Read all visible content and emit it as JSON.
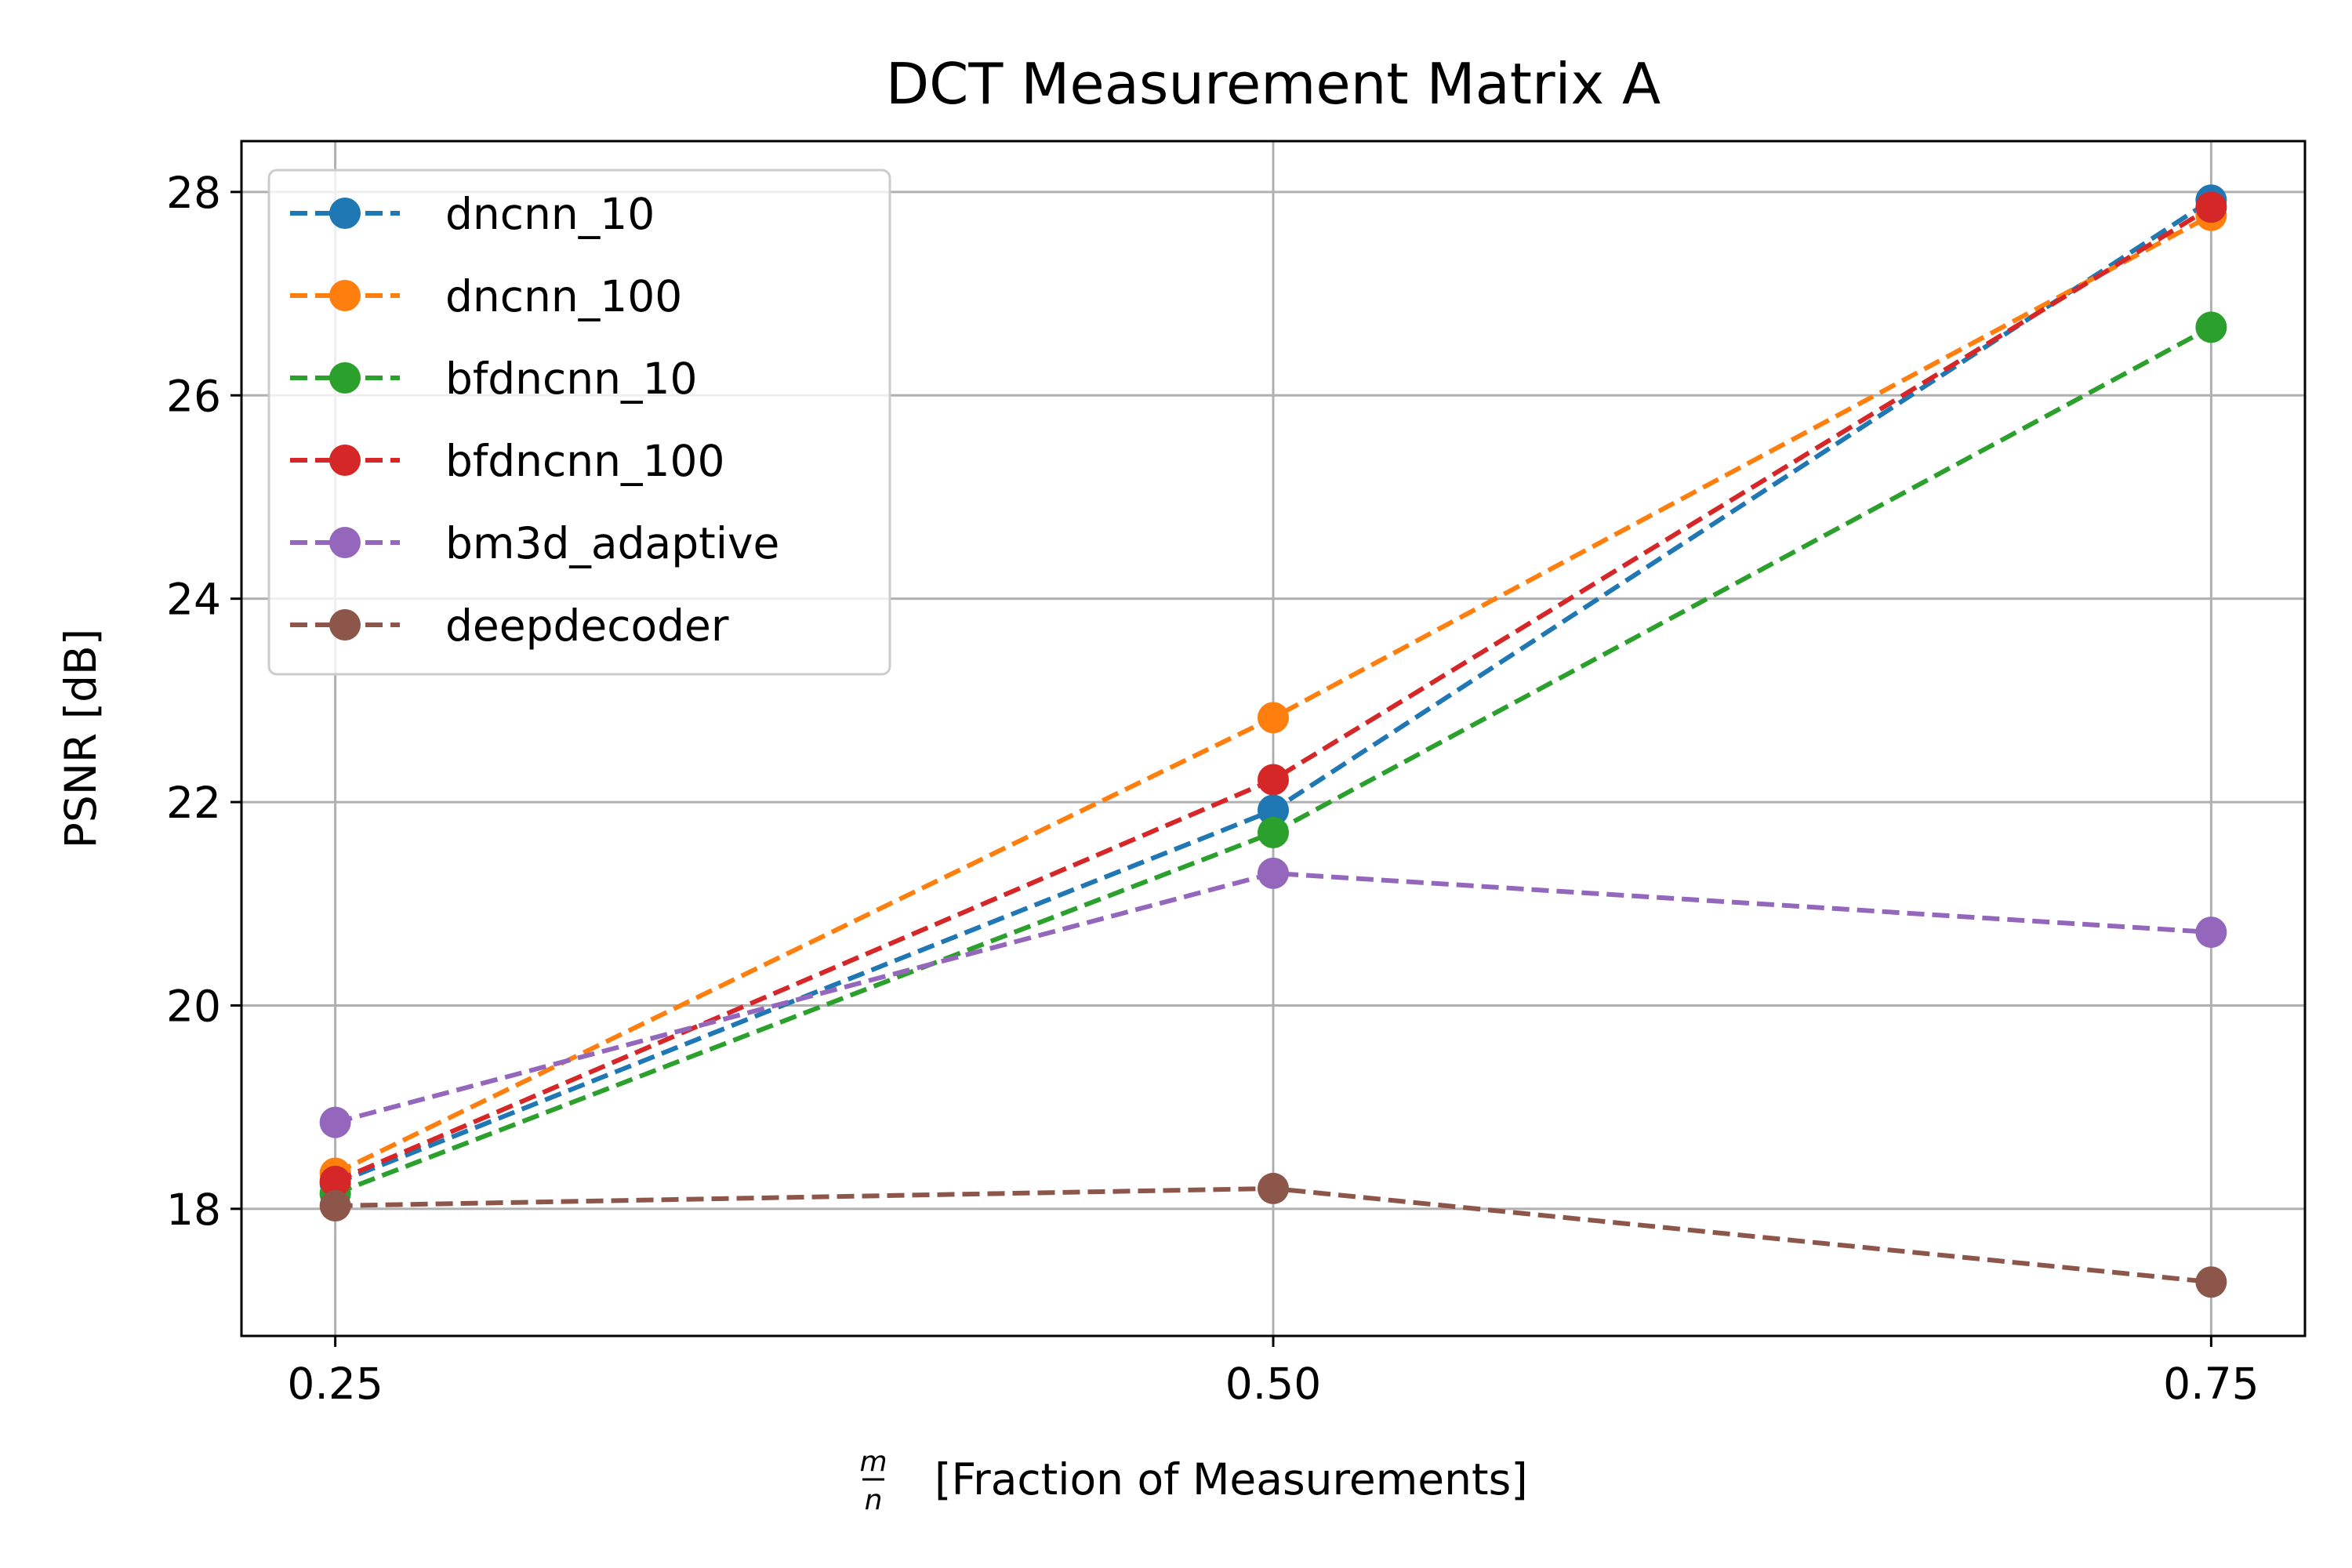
{
  "chart_data": {
    "type": "line",
    "title": "DCT Measurement Matrix A",
    "xlabel_frac_num": "m",
    "xlabel_frac_den": "n",
    "xlabel": "[Fraction of Measurements]",
    "ylabel": "PSNR  [dB]",
    "x": [
      0.25,
      0.5,
      0.75
    ],
    "x_tick_labels": [
      "0.25",
      "0.50",
      "0.75"
    ],
    "xlim": [
      0.225,
      0.775
    ],
    "y_ticks": [
      18,
      20,
      22,
      24,
      26,
      28
    ],
    "y_tick_labels": [
      "18",
      "20",
      "22",
      "24",
      "26",
      "28"
    ],
    "ylim": [
      16.75,
      28.5
    ],
    "grid": true,
    "legend_position": "top-left",
    "series": [
      {
        "name": "dncnn_10",
        "color": "#1f77b4",
        "values": [
          18.25,
          21.92,
          27.92
        ]
      },
      {
        "name": "dncnn_100",
        "color": "#ff7f0e",
        "values": [
          18.35,
          22.83,
          27.77
        ]
      },
      {
        "name": "bfdncnn_10",
        "color": "#2ca02c",
        "values": [
          18.15,
          21.7,
          26.67
        ]
      },
      {
        "name": "bfdncnn_100",
        "color": "#d62728",
        "values": [
          18.27,
          22.22,
          27.85
        ]
      },
      {
        "name": "bm3d_adaptive",
        "color": "#9467bd",
        "values": [
          18.85,
          21.3,
          20.72
        ]
      },
      {
        "name": "deepdecoder",
        "color": "#8c564b",
        "values": [
          18.03,
          18.2,
          17.28
        ]
      }
    ]
  }
}
